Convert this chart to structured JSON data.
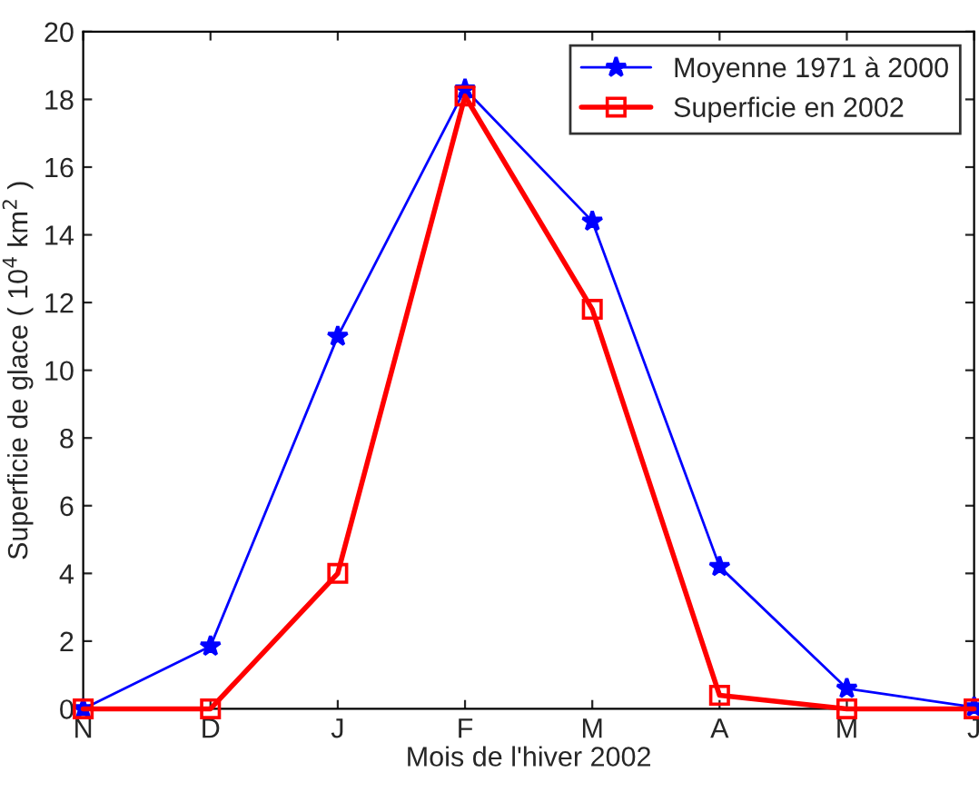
{
  "chart_data": {
    "type": "line",
    "xlabel": "Mois de l'hiver 2002",
    "ylabel": "Superficie de glace ( 10$^{4}$ km$^{2}$ )",
    "categories": [
      "N",
      "D",
      "J",
      "F",
      "M",
      "A",
      "M",
      "J"
    ],
    "series": [
      {
        "name": "Moyenne 1971 à 2000",
        "color": "#0000ff",
        "marker": "star",
        "values": [
          0,
          1.85,
          11.0,
          18.3,
          14.4,
          4.2,
          0.6,
          0.05
        ]
      },
      {
        "name": "Superficie en 2002",
        "color": "#ff0000",
        "marker": "square",
        "values": [
          0,
          0,
          4.0,
          18.1,
          11.8,
          0.4,
          0,
          0
        ]
      }
    ],
    "ylim": [
      0,
      20
    ],
    "yticks": [
      0,
      2,
      4,
      6,
      8,
      10,
      12,
      14,
      16,
      18,
      20
    ],
    "grid": false,
    "legend": "top right",
    "line_style": "solid"
  }
}
